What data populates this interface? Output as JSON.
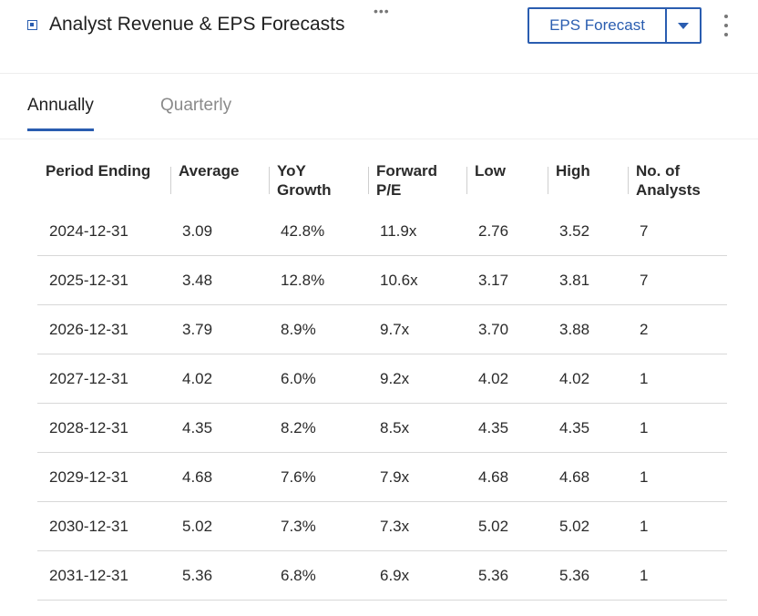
{
  "header": {
    "title": "Analyst Revenue & EPS Forecasts",
    "more_glyph": "•••",
    "dropdown_label": "EPS Forecast",
    "icons": [
      "widget-icon",
      "chevron-down-icon",
      "kebab-menu-icon"
    ],
    "accent_color": "#2a5db0"
  },
  "tabs": [
    {
      "label": "Annually",
      "active": true
    },
    {
      "label": "Quarterly",
      "active": false
    }
  ],
  "table": {
    "columns": [
      "Period Ending",
      "Average",
      "YoY\nGrowth",
      "Forward\nP/E",
      "Low",
      "High",
      "No. of\nAnalysts"
    ],
    "rows": [
      [
        "2024-12-31",
        "3.09",
        "42.8%",
        "11.9x",
        "2.76",
        "3.52",
        "7"
      ],
      [
        "2025-12-31",
        "3.48",
        "12.8%",
        "10.6x",
        "3.17",
        "3.81",
        "7"
      ],
      [
        "2026-12-31",
        "3.79",
        "8.9%",
        "9.7x",
        "3.70",
        "3.88",
        "2"
      ],
      [
        "2027-12-31",
        "4.02",
        "6.0%",
        "9.2x",
        "4.02",
        "4.02",
        "1"
      ],
      [
        "2028-12-31",
        "4.35",
        "8.2%",
        "8.5x",
        "4.35",
        "4.35",
        "1"
      ],
      [
        "2029-12-31",
        "4.68",
        "7.6%",
        "7.9x",
        "4.68",
        "4.68",
        "1"
      ],
      [
        "2030-12-31",
        "5.02",
        "7.3%",
        "7.3x",
        "5.02",
        "5.02",
        "1"
      ],
      [
        "2031-12-31",
        "5.36",
        "6.8%",
        "6.9x",
        "5.36",
        "5.36",
        "1"
      ]
    ]
  }
}
